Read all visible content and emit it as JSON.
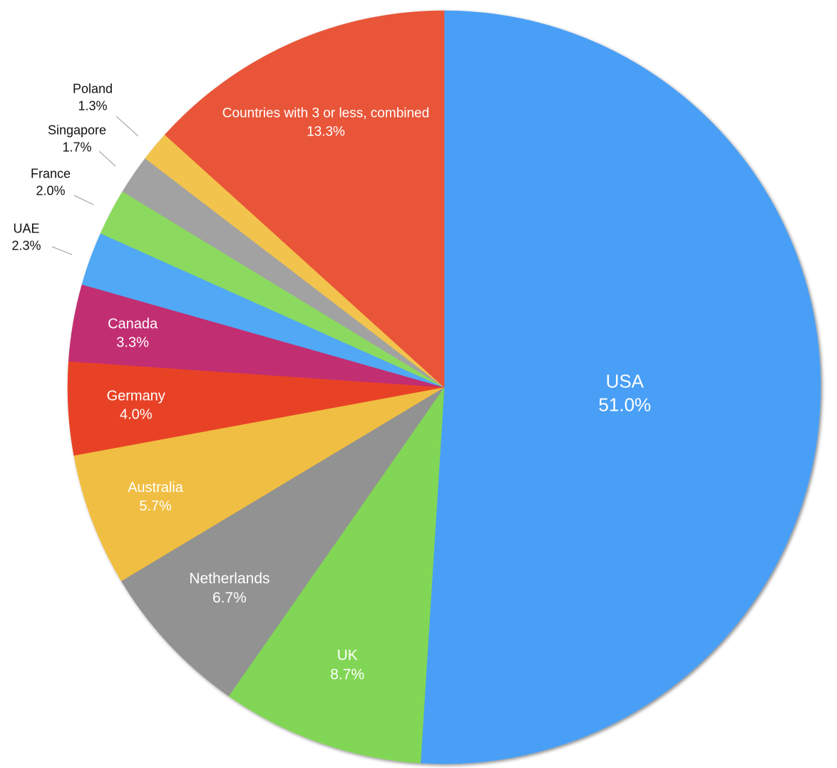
{
  "chart_data": {
    "type": "pie",
    "title": "",
    "slices": [
      {
        "label": "USA",
        "value": 51.0,
        "display": "51.0%",
        "color": "#4A9FF5"
      },
      {
        "label": "UK",
        "value": 8.7,
        "display": "8.7%",
        "color": "#82D655"
      },
      {
        "label": "Netherlands",
        "value": 6.7,
        "display": "6.7%",
        "color": "#929292"
      },
      {
        "label": "Australia",
        "value": 5.7,
        "display": "5.7%",
        "color": "#F0BE42"
      },
      {
        "label": "Germany",
        "value": 4.0,
        "display": "4.0%",
        "color": "#E84326"
      },
      {
        "label": "Canada",
        "value": 3.3,
        "display": "3.3%",
        "color": "#C22E72"
      },
      {
        "label": "UAE",
        "value": 2.3,
        "display": "2.3%",
        "color": "#51A8F4"
      },
      {
        "label": "France",
        "value": 2.0,
        "display": "2.0%",
        "color": "#8BDA5F"
      },
      {
        "label": "Singapore",
        "value": 1.7,
        "display": "1.7%",
        "color": "#A2A2A2"
      },
      {
        "label": "Poland",
        "value": 1.3,
        "display": "1.3%",
        "color": "#F2C34D"
      },
      {
        "label": "Countries with 3 or less, combined",
        "value": 13.3,
        "display": "13.3%",
        "color": "#E95437"
      }
    ],
    "start": "top, clockwise",
    "legend": "none",
    "label_placement": "inside for large slices, outside with leader lines for small slices"
  }
}
